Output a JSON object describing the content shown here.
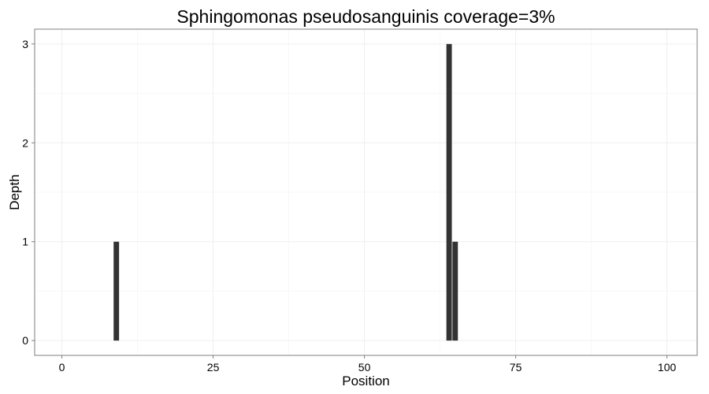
{
  "chart_data": {
    "type": "bar",
    "title": "Sphingomonas pseudosanguinis coverage=3%",
    "xlabel": "Position",
    "ylabel": "Depth",
    "xlim": [
      -4.5,
      105
    ],
    "ylim": [
      -0.15,
      3.15
    ],
    "x_ticks": [
      0,
      25,
      50,
      75,
      100
    ],
    "y_ticks": [
      0,
      1,
      2,
      3
    ],
    "grid": true,
    "bar_color": "#333333",
    "series": [
      {
        "points": [
          {
            "x": 9,
            "y": 1
          },
          {
            "x": 64,
            "y": 3
          },
          {
            "x": 65,
            "y": 1
          }
        ]
      }
    ]
  }
}
